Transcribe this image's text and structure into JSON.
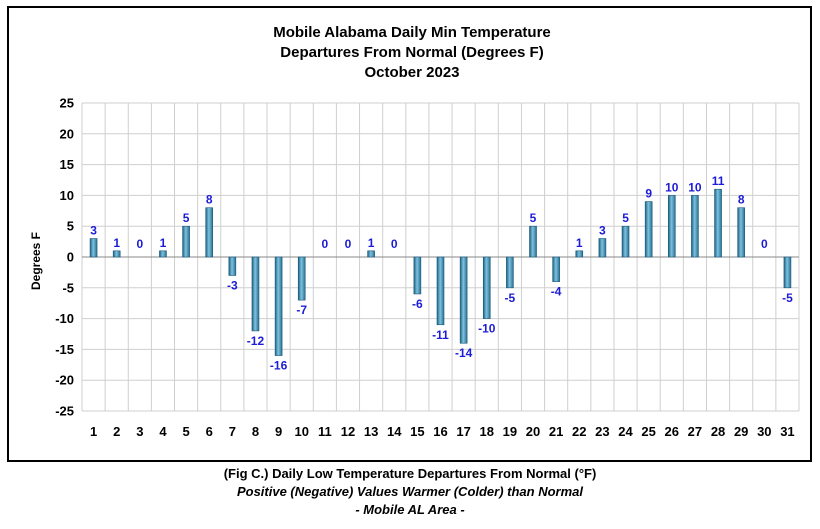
{
  "chart_data": {
    "type": "bar",
    "title": [
      "Mobile Alabama Daily Min Temperature",
      "Departures From Normal (Degrees F)",
      "October 2023"
    ],
    "ylabel": "Degrees F",
    "xlabel": "",
    "ylim": [
      -25,
      25
    ],
    "yticks": [
      25,
      20,
      15,
      10,
      5,
      0,
      -5,
      -10,
      -15,
      -20,
      -25
    ],
    "categories": [
      "1",
      "2",
      "3",
      "4",
      "5",
      "6",
      "7",
      "8",
      "9",
      "10",
      "11",
      "12",
      "13",
      "14",
      "15",
      "16",
      "17",
      "18",
      "19",
      "20",
      "21",
      "22",
      "23",
      "24",
      "25",
      "26",
      "27",
      "28",
      "29",
      "30",
      "31"
    ],
    "values": [
      3,
      1,
      0,
      1,
      5,
      8,
      -3,
      -12,
      -16,
      -7,
      0,
      0,
      1,
      0,
      -6,
      -11,
      -14,
      -10,
      -5,
      5,
      -4,
      1,
      3,
      5,
      9,
      10,
      10,
      11,
      8,
      0,
      -5
    ],
    "grid": true,
    "bar_color": "#3a8db5"
  },
  "caption": {
    "line1": "(Fig C.) Daily Low Temperature Departures From Normal (°F)",
    "line2": "Positive (Negative) Values Warmer (Colder) than Normal",
    "line3": "- Mobile AL Area -"
  }
}
